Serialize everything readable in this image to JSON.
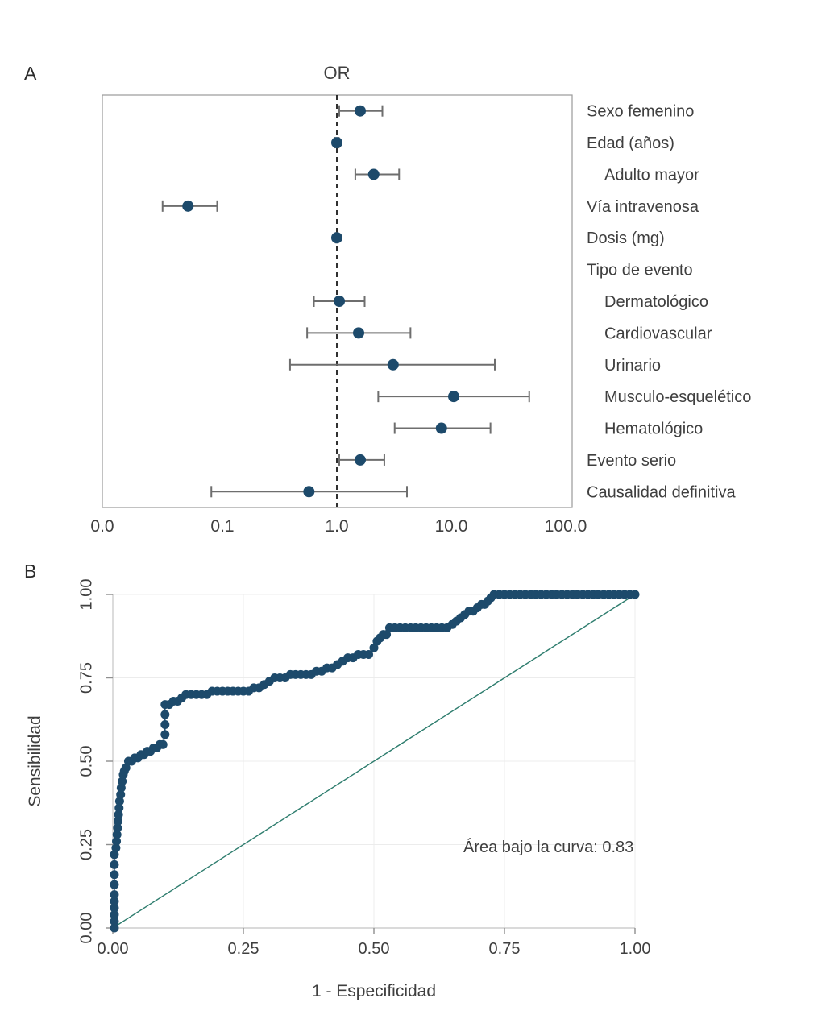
{
  "figure": {
    "panelA_label": "A",
    "panelB_label": "B"
  },
  "colors": {
    "point": "#1d4a6b",
    "whisker": "#6e6e6e",
    "diagonal": "#2e7d6e",
    "reference": "#1a1a1a",
    "frame": "#9a9a9a",
    "grid": "#ececec",
    "text": "#3f3f3f"
  },
  "chart_data": [
    {
      "type": "scatter",
      "subtype": "forest-plot",
      "panel": "A",
      "title": "OR",
      "x_scale": "log",
      "x_tick_labels": [
        "0.0",
        "0.1",
        "1.0",
        "10.0",
        "100.0"
      ],
      "reference_line": 1.0,
      "legend_position": "none",
      "rows": [
        {
          "label": "Sexo femenino",
          "indent": false,
          "or": 1.6,
          "lo": 1.05,
          "hi": 2.5
        },
        {
          "label": "Edad (años)",
          "indent": false,
          "or": 1.0,
          "lo": 0.96,
          "hi": 1.04
        },
        {
          "label": "Adulto mayor",
          "indent": true,
          "or": 2.1,
          "lo": 1.45,
          "hi": 3.5
        },
        {
          "label": "Vía intravenosa",
          "indent": false,
          "or": 0.05,
          "lo": 0.03,
          "hi": 0.09
        },
        {
          "label": "Dosis (mg)",
          "indent": false,
          "or": 1.0,
          "lo": 0.98,
          "hi": 1.02
        },
        {
          "label": "Tipo de evento",
          "indent": false,
          "or": null,
          "lo": null,
          "hi": null
        },
        {
          "label": "Dermatológico",
          "indent": true,
          "or": 1.05,
          "lo": 0.63,
          "hi": 1.75
        },
        {
          "label": "Cardiovascular",
          "indent": true,
          "or": 1.55,
          "lo": 0.55,
          "hi": 4.4
        },
        {
          "label": "Urinario",
          "indent": true,
          "or": 3.1,
          "lo": 0.39,
          "hi": 24.0
        },
        {
          "label": "Musculo-esquelético",
          "indent": true,
          "or": 10.5,
          "lo": 2.3,
          "hi": 48.0
        },
        {
          "label": "Hematológico",
          "indent": true,
          "or": 8.2,
          "lo": 3.2,
          "hi": 22.0
        },
        {
          "label": "Evento serio",
          "indent": false,
          "or": 1.6,
          "lo": 1.05,
          "hi": 2.6
        },
        {
          "label": "Causalidad definitiva",
          "indent": false,
          "or": 0.57,
          "lo": 0.08,
          "hi": 4.1
        }
      ]
    },
    {
      "type": "scatter",
      "subtype": "roc-curve",
      "panel": "B",
      "xlabel": "1 - Especificidad",
      "ylabel": "Sensibilidad",
      "annotation": "Área bajo la curva: 0.83",
      "auc": 0.83,
      "xlim": [
        0,
        1
      ],
      "ylim": [
        0,
        1
      ],
      "x_ticks": [
        "0.00",
        "0.25",
        "0.50",
        "0.75",
        "1.00"
      ],
      "y_ticks": [
        "0.00",
        "0.25",
        "0.50",
        "0.75",
        "1.00"
      ],
      "grid": true,
      "diagonal_reference": true,
      "points": [
        [
          0.003,
          0.0
        ],
        [
          0.003,
          0.02
        ],
        [
          0.003,
          0.04
        ],
        [
          0.003,
          0.06
        ],
        [
          0.003,
          0.08
        ],
        [
          0.003,
          0.1
        ],
        [
          0.003,
          0.13
        ],
        [
          0.003,
          0.16
        ],
        [
          0.003,
          0.19
        ],
        [
          0.003,
          0.22
        ],
        [
          0.006,
          0.24
        ],
        [
          0.007,
          0.26
        ],
        [
          0.008,
          0.28
        ],
        [
          0.009,
          0.3
        ],
        [
          0.01,
          0.32
        ],
        [
          0.011,
          0.34
        ],
        [
          0.012,
          0.36
        ],
        [
          0.013,
          0.38
        ],
        [
          0.015,
          0.4
        ],
        [
          0.016,
          0.42
        ],
        [
          0.018,
          0.44
        ],
        [
          0.02,
          0.46
        ],
        [
          0.022,
          0.47
        ],
        [
          0.025,
          0.48
        ],
        [
          0.03,
          0.5
        ],
        [
          0.036,
          0.5
        ],
        [
          0.042,
          0.51
        ],
        [
          0.048,
          0.51
        ],
        [
          0.054,
          0.52
        ],
        [
          0.06,
          0.52
        ],
        [
          0.066,
          0.53
        ],
        [
          0.072,
          0.53
        ],
        [
          0.078,
          0.54
        ],
        [
          0.084,
          0.54
        ],
        [
          0.09,
          0.55
        ],
        [
          0.096,
          0.55
        ],
        [
          0.1,
          0.58
        ],
        [
          0.1,
          0.61
        ],
        [
          0.1,
          0.64
        ],
        [
          0.1,
          0.67
        ],
        [
          0.108,
          0.67
        ],
        [
          0.116,
          0.68
        ],
        [
          0.124,
          0.68
        ],
        [
          0.132,
          0.69
        ],
        [
          0.14,
          0.7
        ],
        [
          0.15,
          0.7
        ],
        [
          0.16,
          0.7
        ],
        [
          0.17,
          0.7
        ],
        [
          0.18,
          0.7
        ],
        [
          0.19,
          0.71
        ],
        [
          0.2,
          0.71
        ],
        [
          0.21,
          0.71
        ],
        [
          0.22,
          0.71
        ],
        [
          0.23,
          0.71
        ],
        [
          0.24,
          0.71
        ],
        [
          0.25,
          0.71
        ],
        [
          0.26,
          0.71
        ],
        [
          0.27,
          0.72
        ],
        [
          0.28,
          0.72
        ],
        [
          0.29,
          0.73
        ],
        [
          0.3,
          0.74
        ],
        [
          0.31,
          0.75
        ],
        [
          0.32,
          0.75
        ],
        [
          0.33,
          0.75
        ],
        [
          0.34,
          0.76
        ],
        [
          0.35,
          0.76
        ],
        [
          0.36,
          0.76
        ],
        [
          0.37,
          0.76
        ],
        [
          0.38,
          0.76
        ],
        [
          0.39,
          0.77
        ],
        [
          0.4,
          0.77
        ],
        [
          0.41,
          0.78
        ],
        [
          0.42,
          0.78
        ],
        [
          0.43,
          0.79
        ],
        [
          0.44,
          0.8
        ],
        [
          0.45,
          0.81
        ],
        [
          0.46,
          0.81
        ],
        [
          0.47,
          0.82
        ],
        [
          0.48,
          0.82
        ],
        [
          0.49,
          0.82
        ],
        [
          0.5,
          0.84
        ],
        [
          0.506,
          0.86
        ],
        [
          0.512,
          0.87
        ],
        [
          0.518,
          0.88
        ],
        [
          0.524,
          0.88
        ],
        [
          0.53,
          0.9
        ],
        [
          0.54,
          0.9
        ],
        [
          0.55,
          0.9
        ],
        [
          0.56,
          0.9
        ],
        [
          0.57,
          0.9
        ],
        [
          0.58,
          0.9
        ],
        [
          0.59,
          0.9
        ],
        [
          0.6,
          0.9
        ],
        [
          0.61,
          0.9
        ],
        [
          0.62,
          0.9
        ],
        [
          0.63,
          0.9
        ],
        [
          0.64,
          0.9
        ],
        [
          0.65,
          0.91
        ],
        [
          0.658,
          0.92
        ],
        [
          0.666,
          0.93
        ],
        [
          0.674,
          0.94
        ],
        [
          0.682,
          0.95
        ],
        [
          0.69,
          0.95
        ],
        [
          0.698,
          0.96
        ],
        [
          0.706,
          0.97
        ],
        [
          0.712,
          0.97
        ],
        [
          0.718,
          0.98
        ],
        [
          0.724,
          0.99
        ],
        [
          0.73,
          1.0
        ],
        [
          0.74,
          1.0
        ],
        [
          0.75,
          1.0
        ],
        [
          0.76,
          1.0
        ],
        [
          0.77,
          1.0
        ],
        [
          0.78,
          1.0
        ],
        [
          0.79,
          1.0
        ],
        [
          0.8,
          1.0
        ],
        [
          0.81,
          1.0
        ],
        [
          0.82,
          1.0
        ],
        [
          0.83,
          1.0
        ],
        [
          0.84,
          1.0
        ],
        [
          0.85,
          1.0
        ],
        [
          0.86,
          1.0
        ],
        [
          0.87,
          1.0
        ],
        [
          0.88,
          1.0
        ],
        [
          0.89,
          1.0
        ],
        [
          0.9,
          1.0
        ],
        [
          0.91,
          1.0
        ],
        [
          0.92,
          1.0
        ],
        [
          0.93,
          1.0
        ],
        [
          0.94,
          1.0
        ],
        [
          0.95,
          1.0
        ],
        [
          0.96,
          1.0
        ],
        [
          0.97,
          1.0
        ],
        [
          0.98,
          1.0
        ],
        [
          0.99,
          1.0
        ],
        [
          1.0,
          1.0
        ]
      ]
    }
  ]
}
